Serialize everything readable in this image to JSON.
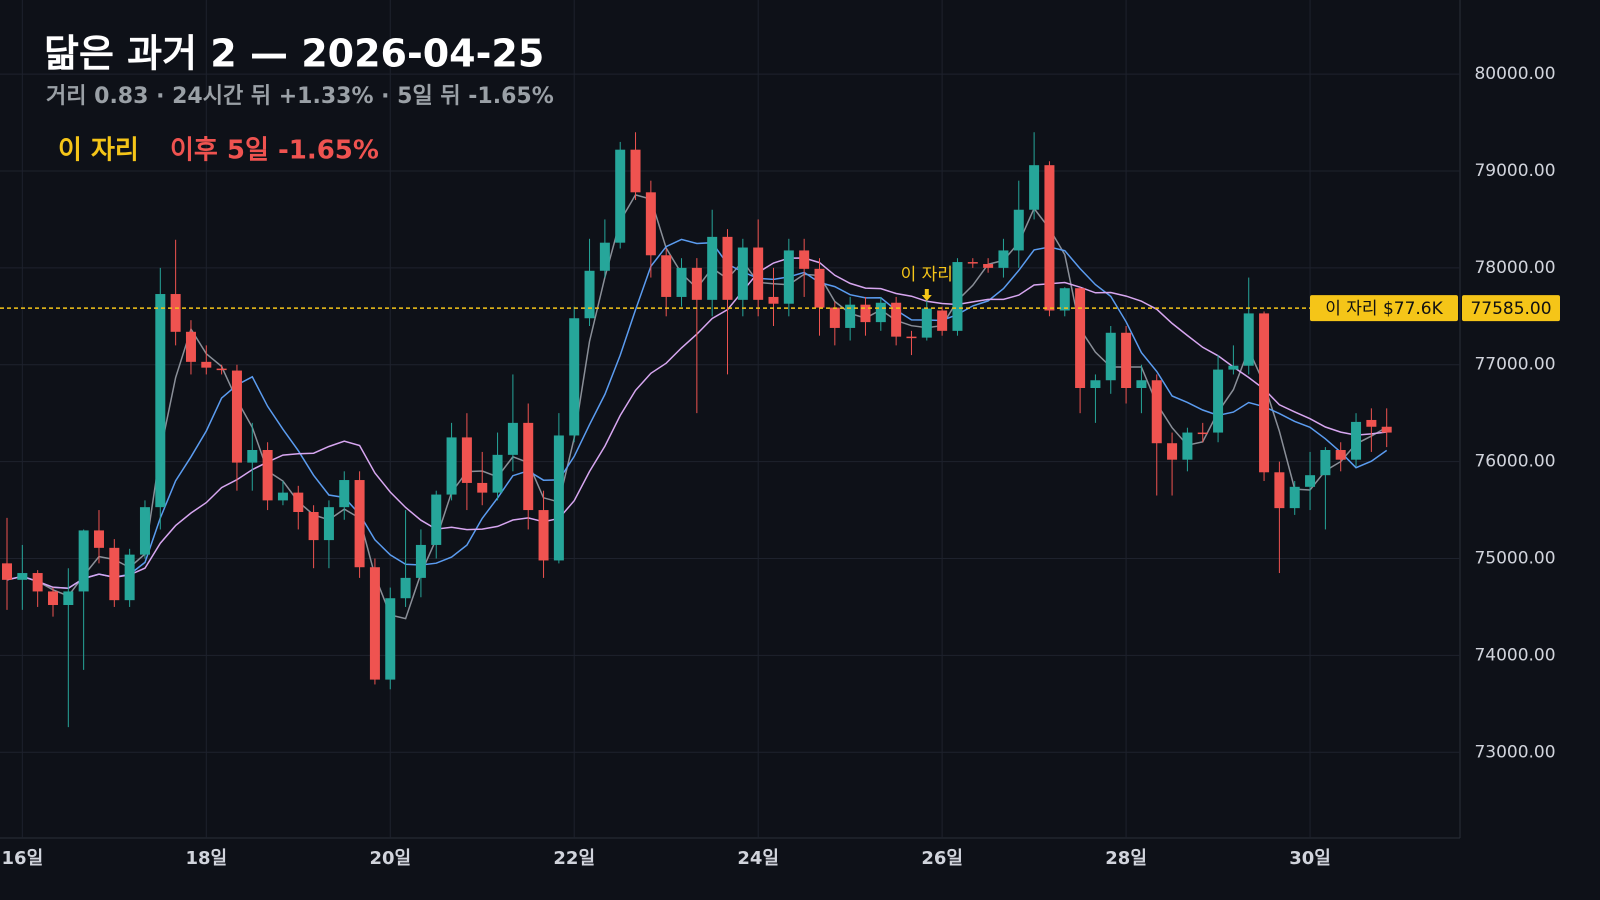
{
  "chart_data": {
    "type": "candlestick",
    "title": "닮은 과거 2 — 2026-04-25",
    "subtitle": "거리 0.83 · 24시간 뒤 +1.33% · 5일 뒤 -1.65%",
    "legend": [
      {
        "name": "이 자리",
        "color": "#f5c518"
      },
      {
        "name": "이후 5일 -1.65%",
        "color": "#ef5350"
      }
    ],
    "up_color": "#26a69a",
    "down_color": "#ef5350",
    "open": [
      74950,
      74780,
      74850,
      74660,
      74520,
      74660,
      75290,
      75110,
      74570,
      75040,
      75530,
      77730,
      77340,
      77030,
      76960,
      76940,
      75990,
      76120,
      75600,
      75680,
      75480,
      75190,
      75530,
      75810,
      74910,
      73750,
      74590,
      74800,
      75140,
      75660,
      76250,
      75780,
      75680,
      76070,
      76400,
      75500,
      74980,
      76270,
      77480,
      77970,
      78260,
      79220,
      78780,
      78130,
      77700,
      78000,
      77670,
      78320,
      77670,
      78210,
      77700,
      77630,
      78180,
      77990,
      77590,
      77380,
      77620,
      77440,
      77640,
      77290,
      77280,
      77560,
      77350,
      78060,
      78040,
      78000,
      78180,
      78600,
      79060,
      77560,
      77790,
      76760,
      76840,
      77330,
      76760,
      76840,
      76190,
      76020,
      76300,
      76300,
      76950,
      76990,
      77530,
      75890,
      75520,
      75740,
      75860,
      76120,
      76020,
      76430,
      76360
    ],
    "high": [
      75420,
      75140,
      74880,
      74700,
      74900,
      75300,
      75500,
      75200,
      75100,
      75600,
      78000,
      78290,
      77460,
      77200,
      77000,
      77000,
      76400,
      76200,
      75800,
      75750,
      75550,
      75600,
      75900,
      75900,
      75000,
      74700,
      75500,
      75300,
      75700,
      76400,
      76500,
      76100,
      76300,
      76900,
      76600,
      75700,
      76500,
      77600,
      78300,
      78500,
      79300,
      79400,
      78900,
      78200,
      78100,
      78100,
      78600,
      78400,
      78300,
      78500,
      78000,
      78300,
      78300,
      78100,
      77650,
      77700,
      77700,
      77700,
      77700,
      77350,
      77700,
      77600,
      78100,
      78100,
      78100,
      78300,
      78900,
      79400,
      79100,
      77800,
      77800,
      76900,
      77400,
      77400,
      77000,
      76900,
      76300,
      76350,
      76400,
      77100,
      77200,
      77900,
      77550,
      76000,
      75800,
      76100,
      76150,
      76200,
      76500,
      76550,
      76550
    ],
    "low": [
      74470,
      74470,
      74500,
      74400,
      73260,
      73850,
      74950,
      74500,
      74500,
      75000,
      75300,
      77200,
      76900,
      76900,
      76900,
      75700,
      75700,
      75500,
      75550,
      75300,
      74900,
      74900,
      75400,
      74800,
      73700,
      73650,
      74500,
      74600,
      75000,
      75600,
      75500,
      75550,
      75600,
      75900,
      75300,
      74800,
      74950,
      76200,
      77400,
      77900,
      78200,
      78700,
      77900,
      77500,
      77600,
      76500,
      77500,
      76900,
      77500,
      77500,
      77400,
      77500,
      77700,
      77300,
      77200,
      77250,
      77300,
      77350,
      77200,
      77100,
      77250,
      77300,
      77300,
      78000,
      77950,
      77900,
      78000,
      78500,
      77500,
      77500,
      76500,
      76400,
      76700,
      76600,
      76500,
      75650,
      75650,
      75900,
      76200,
      76200,
      76900,
      76900,
      75800,
      74850,
      75450,
      75500,
      75300,
      75900,
      75950,
      76100,
      76150
    ],
    "close": [
      74780,
      74850,
      74660,
      74520,
      74660,
      75290,
      75110,
      74570,
      75040,
      75530,
      77730,
      77340,
      77030,
      76970,
      76950,
      75990,
      76120,
      75600,
      75680,
      75480,
      75190,
      75530,
      75810,
      74910,
      73750,
      74590,
      74800,
      75140,
      75660,
      76250,
      75780,
      75680,
      76070,
      76400,
      75500,
      74980,
      76270,
      77480,
      77970,
      78260,
      79220,
      78780,
      78130,
      77700,
      78000,
      77670,
      78320,
      77670,
      78210,
      77670,
      77630,
      78180,
      77990,
      77590,
      77380,
      77620,
      77440,
      77640,
      77290,
      77280,
      77580,
      77350,
      78060,
      78050,
      78000,
      78180,
      78600,
      79060,
      77560,
      77790,
      76760,
      76840,
      77330,
      76760,
      76840,
      76190,
      76020,
      76300,
      76290,
      76950,
      76990,
      77530,
      75890,
      75520,
      75740,
      75860,
      76120,
      76020,
      76410,
      76360,
      76300
    ],
    "ylim": [
      72115,
      80765
    ],
    "yticks": [
      {
        "value": 73000,
        "label": "73000.00"
      },
      {
        "value": 74000,
        "label": "74000.00"
      },
      {
        "value": 75000,
        "label": "75000.00"
      },
      {
        "value": 76000,
        "label": "76000.00"
      },
      {
        "value": 77000,
        "label": "77000.00"
      },
      {
        "value": 78000,
        "label": "78000.00"
      },
      {
        "value": 79000,
        "label": "79000.00"
      },
      {
        "value": 80000,
        "label": "80000.00"
      }
    ],
    "xticks": [
      {
        "value": 1,
        "label": "16일"
      },
      {
        "value": 13,
        "label": "18일"
      },
      {
        "value": 25,
        "label": "20일"
      },
      {
        "value": 37,
        "label": "22일"
      },
      {
        "value": 49,
        "label": "24일"
      },
      {
        "value": 61,
        "label": "26일"
      },
      {
        "value": 73,
        "label": "28일"
      },
      {
        "value": 85,
        "label": "30일"
      }
    ],
    "grid": true,
    "marker": {
      "value": 77585,
      "label": "77585.00",
      "tag": "이 자리 $77.6K",
      "annotation": "이 자리",
      "index": 60,
      "color": "#f5c518"
    }
  }
}
